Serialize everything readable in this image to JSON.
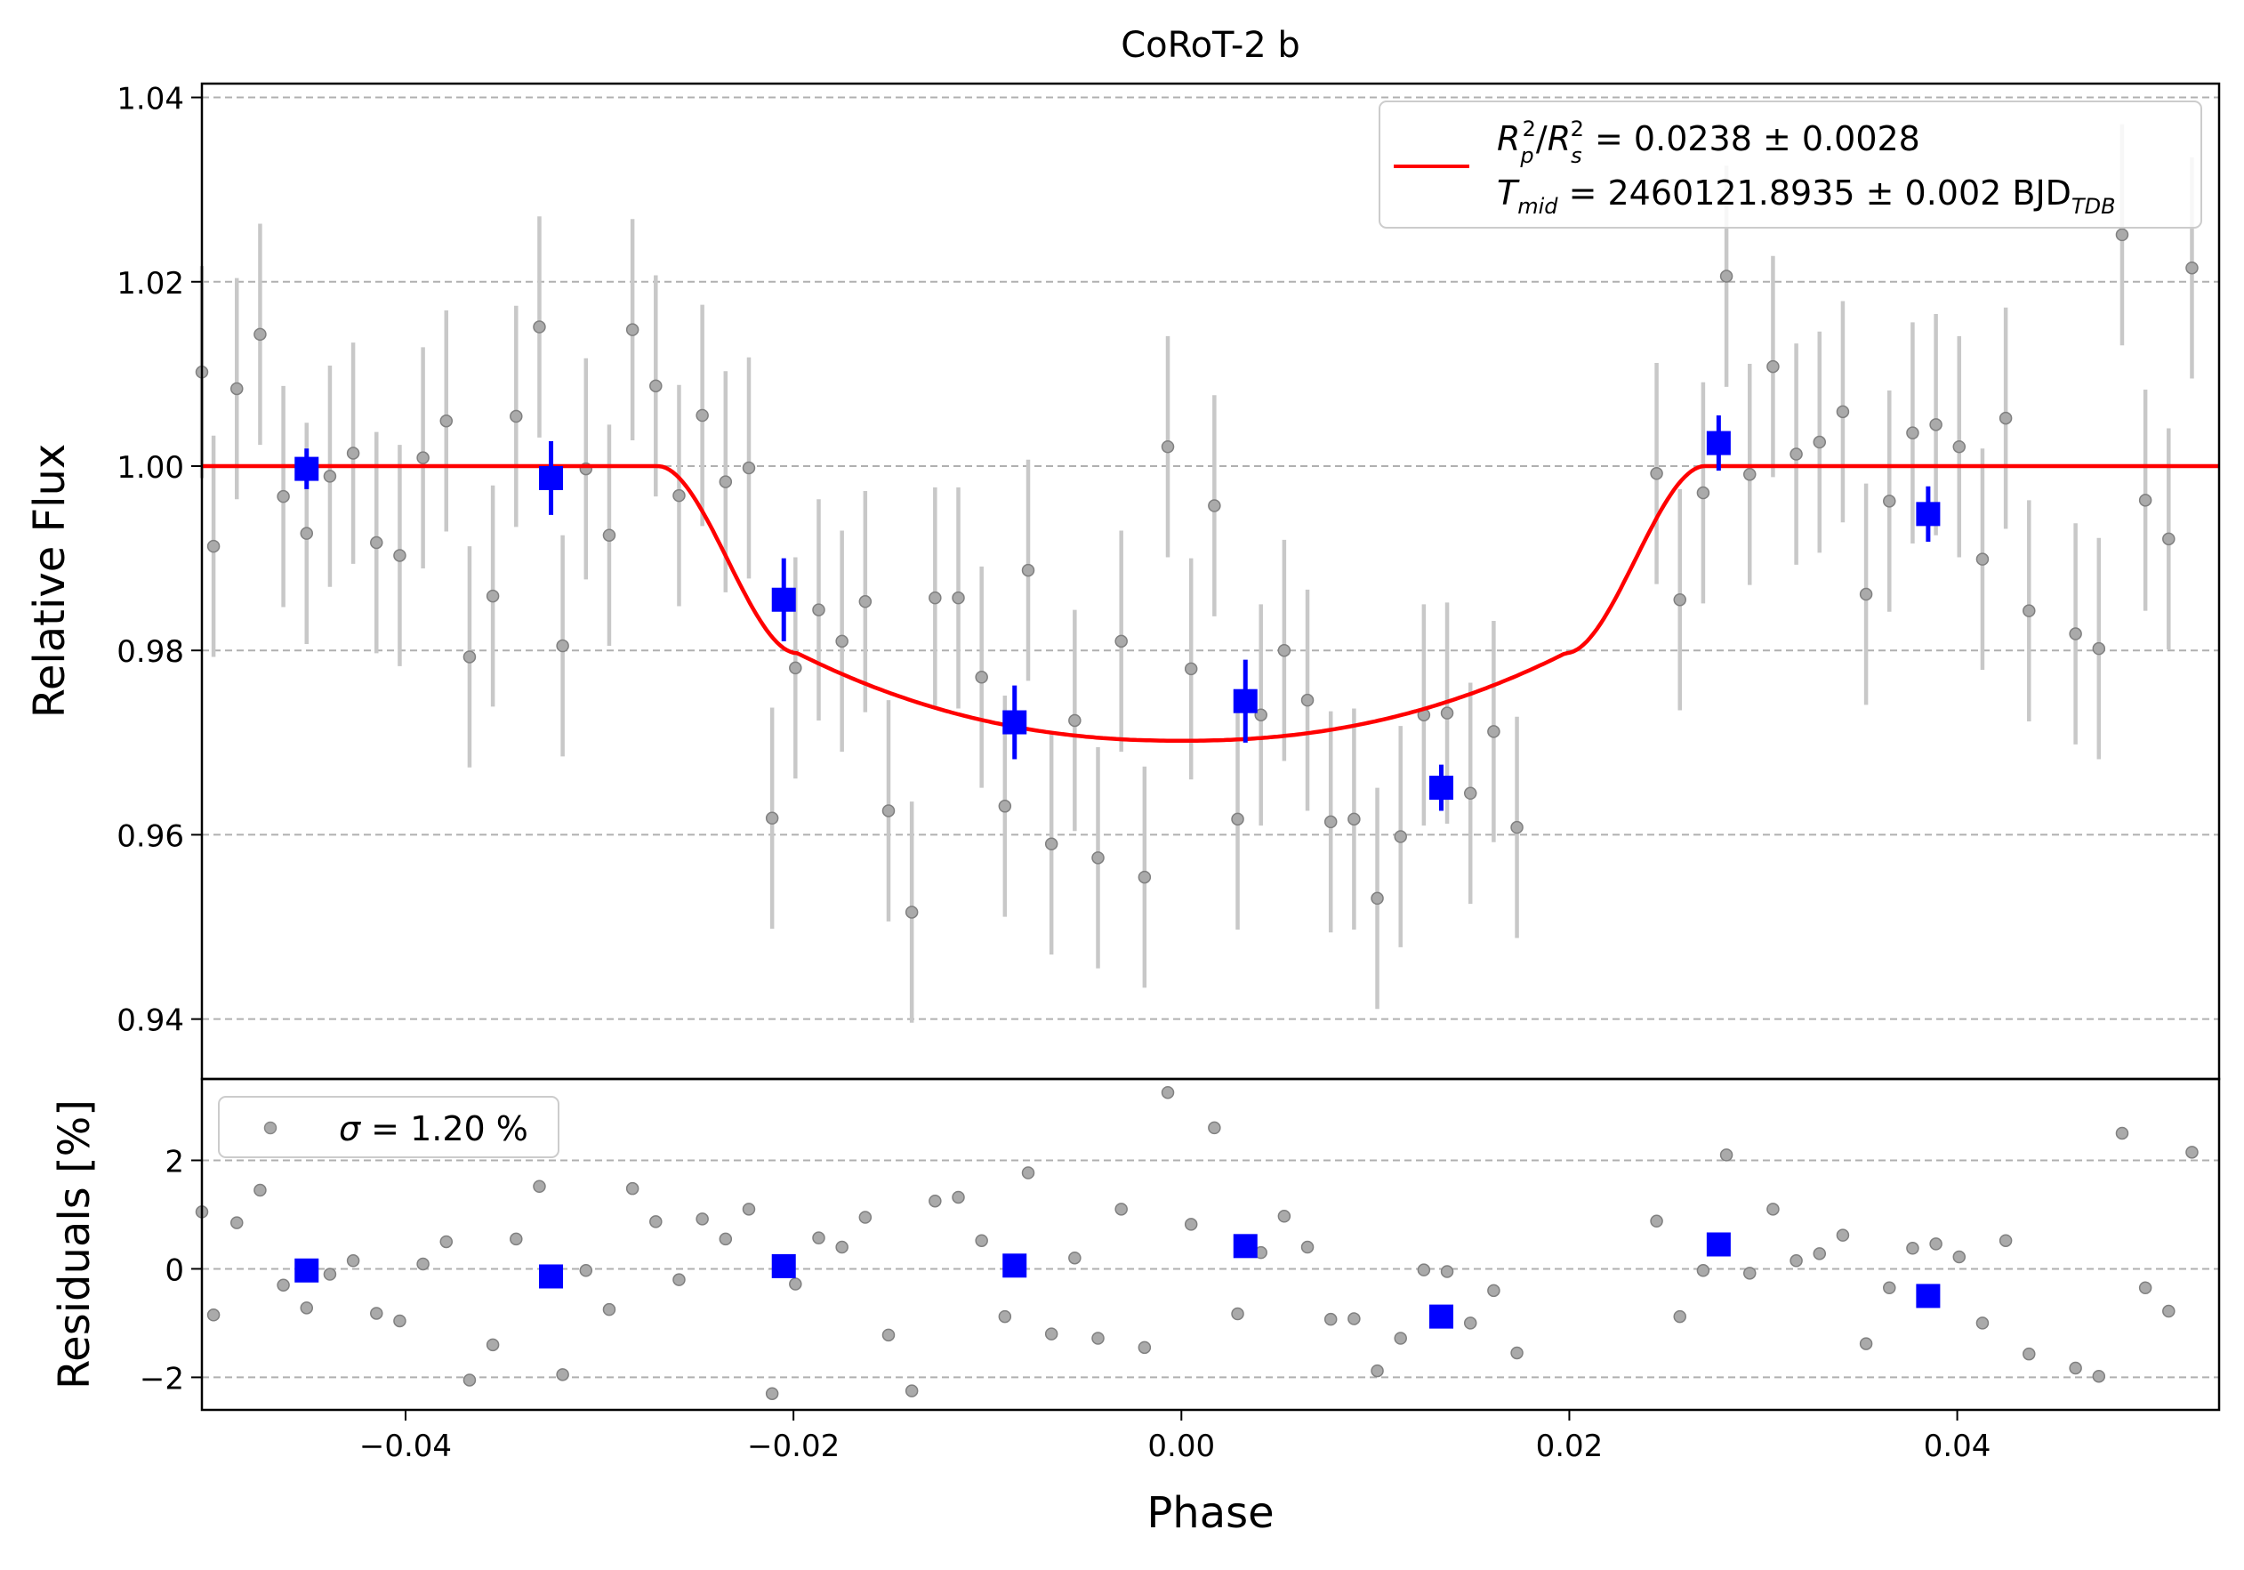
{
  "chart_data": {
    "type": "scatter",
    "title": "CoRoT-2 b",
    "xlabel": "Phase",
    "ylabel_top": "Relative Flux",
    "ylabel_bottom": "Residuals [%]",
    "xlim": [
      -0.0505,
      0.0535
    ],
    "ylim_top": [
      0.9335,
      1.0415
    ],
    "ylim_bottom": [
      -2.6,
      3.5
    ],
    "x_ticks": [
      {
        "v": -0.04,
        "label": "−0.04"
      },
      {
        "v": -0.02,
        "label": "−0.02"
      },
      {
        "v": 0.0,
        "label": "0.00"
      },
      {
        "v": 0.02,
        "label": "0.02"
      },
      {
        "v": 0.04,
        "label": "0.04"
      }
    ],
    "y_ticks_top": [
      {
        "v": 0.94,
        "label": "0.94"
      },
      {
        "v": 0.96,
        "label": "0.96"
      },
      {
        "v": 0.98,
        "label": "0.98"
      },
      {
        "v": 1.0,
        "label": "1.00"
      },
      {
        "v": 1.02,
        "label": "1.02"
      },
      {
        "v": 1.04,
        "label": "1.04"
      }
    ],
    "y_ticks_bottom": [
      {
        "v": -2,
        "label": "−2"
      },
      {
        "v": 0,
        "label": "0"
      },
      {
        "v": 2,
        "label": "2"
      }
    ],
    "grid": "horizontal dashed",
    "legend_top": {
      "placement": "top-right",
      "line1": "R",
      "line1_sub_p": "p",
      "line1_sup": "2",
      "line1_sub_s": "s",
      "line1_value": " = 0.0238 ± 0.0028",
      "line2_T": "T",
      "line2_sub": "mid",
      "line2_value": " = 2460121.8935 ± 0.002 BJD",
      "line2_unit_sub": "TDB"
    },
    "legend_bottom": {
      "placement": "top-left",
      "sigma": "σ",
      "text": " = 1.20 %"
    },
    "colors": {
      "model": "#ff0000",
      "binned": "#0000ff",
      "raw": "#808080",
      "errorbar": "#c8c8c8",
      "grid": "#b0b0b0"
    },
    "model": {
      "depth": 0.0238,
      "t_ingress_start": 0.027,
      "t_flat": 0.0198,
      "bottom": 0.9702,
      "contact2_flux": 0.9797
    },
    "raw_points": [
      {
        "x": -0.0505,
        "y": 1.0102,
        "e": 0.0115,
        "r": 1.05
      },
      {
        "x": -0.0499,
        "y": 0.9913,
        "e": 0.012,
        "r": -0.85
      },
      {
        "x": -0.0487,
        "y": 1.0084,
        "e": 0.012,
        "r": 0.85
      },
      {
        "x": -0.0475,
        "y": 1.0143,
        "e": 0.012,
        "r": 1.45
      },
      {
        "x": -0.0463,
        "y": 0.9967,
        "e": 0.012,
        "r": -0.3
      },
      {
        "x": -0.0451,
        "y": 0.9927,
        "e": 0.012,
        "r": -0.72
      },
      {
        "x": -0.0439,
        "y": 0.9989,
        "e": 0.012,
        "r": -0.1
      },
      {
        "x": -0.0427,
        "y": 1.0014,
        "e": 0.012,
        "r": 0.15
      },
      {
        "x": -0.0415,
        "y": 0.9917,
        "e": 0.012,
        "r": -0.82
      },
      {
        "x": -0.0403,
        "y": 0.9903,
        "e": 0.012,
        "r": -0.96
      },
      {
        "x": -0.0391,
        "y": 1.0009,
        "e": 0.012,
        "r": 0.09
      },
      {
        "x": -0.0379,
        "y": 1.0049,
        "e": 0.012,
        "r": 0.5
      },
      {
        "x": -0.0367,
        "y": 0.9793,
        "e": 0.012,
        "r": -2.05
      },
      {
        "x": -0.0355,
        "y": 0.9859,
        "e": 0.012,
        "r": -1.4
      },
      {
        "x": -0.0343,
        "y": 1.0054,
        "e": 0.012,
        "r": 0.55
      },
      {
        "x": -0.0331,
        "y": 1.0151,
        "e": 0.012,
        "r": 1.52
      },
      {
        "x": -0.0319,
        "y": 0.9805,
        "e": 0.012,
        "r": -1.95
      },
      {
        "x": -0.0307,
        "y": 0.9997,
        "e": 0.012,
        "r": -0.03
      },
      {
        "x": -0.0295,
        "y": 0.9925,
        "e": 0.012,
        "r": -0.75
      },
      {
        "x": -0.0283,
        "y": 1.0148,
        "e": 0.012,
        "r": 1.48
      },
      {
        "x": -0.0271,
        "y": 1.0087,
        "e": 0.012,
        "r": 0.87
      },
      {
        "x": -0.0259,
        "y": 0.9968,
        "e": 0.012,
        "r": -0.2
      },
      {
        "x": -0.0247,
        "y": 1.0055,
        "e": 0.012,
        "r": 0.92
      },
      {
        "x": -0.0235,
        "y": 0.9983,
        "e": 0.012,
        "r": 0.55
      },
      {
        "x": -0.0223,
        "y": 0.9998,
        "e": 0.012,
        "r": 1.1
      },
      {
        "x": -0.0211,
        "y": 0.9618,
        "e": 0.012,
        "r": -2.3
      },
      {
        "x": -0.0199,
        "y": 0.9781,
        "e": 0.012,
        "r": -0.28
      },
      {
        "x": -0.0187,
        "y": 0.9844,
        "e": 0.012,
        "r": 0.57
      },
      {
        "x": -0.0175,
        "y": 0.981,
        "e": 0.012,
        "r": 0.4
      },
      {
        "x": -0.0163,
        "y": 0.9853,
        "e": 0.012,
        "r": 0.95
      },
      {
        "x": -0.0151,
        "y": 0.9626,
        "e": 0.012,
        "r": -1.22
      },
      {
        "x": -0.0139,
        "y": 0.9516,
        "e": 0.012,
        "r": -2.25
      },
      {
        "x": -0.0127,
        "y": 0.9857,
        "e": 0.012,
        "r": 1.25
      },
      {
        "x": -0.0115,
        "y": 0.9857,
        "e": 0.012,
        "r": 1.32
      },
      {
        "x": -0.0103,
        "y": 0.9771,
        "e": 0.012,
        "r": 0.52
      },
      {
        "x": -0.0091,
        "y": 0.9631,
        "e": 0.012,
        "r": -0.88
      },
      {
        "x": -0.0079,
        "y": 0.9887,
        "e": 0.012,
        "r": 1.77
      },
      {
        "x": -0.0067,
        "y": 0.959,
        "e": 0.012,
        "r": -1.2
      },
      {
        "x": -0.0055,
        "y": 0.9724,
        "e": 0.012,
        "r": 0.2
      },
      {
        "x": -0.0043,
        "y": 0.9575,
        "e": 0.012,
        "r": -1.28
      },
      {
        "x": -0.0031,
        "y": 0.981,
        "e": 0.012,
        "r": 1.1
      },
      {
        "x": -0.0019,
        "y": 0.9554,
        "e": 0.012,
        "r": -1.45
      },
      {
        "x": -0.0007,
        "y": 1.0021,
        "e": 0.012,
        "r": 3.25
      },
      {
        "x": 0.0005,
        "y": 0.978,
        "e": 0.012,
        "r": 0.82
      },
      {
        "x": 0.0017,
        "y": 0.9957,
        "e": 0.012,
        "r": 2.6
      },
      {
        "x": 0.0029,
        "y": 0.9617,
        "e": 0.012,
        "r": -0.83
      },
      {
        "x": 0.0041,
        "y": 0.973,
        "e": 0.012,
        "r": 0.3
      },
      {
        "x": 0.0053,
        "y": 0.98,
        "e": 0.012,
        "r": 0.97
      },
      {
        "x": 0.0065,
        "y": 0.9746,
        "e": 0.012,
        "r": 0.4
      },
      {
        "x": 0.0077,
        "y": 0.9614,
        "e": 0.012,
        "r": -0.93
      },
      {
        "x": 0.0089,
        "y": 0.9617,
        "e": 0.012,
        "r": -0.92
      },
      {
        "x": 0.0101,
        "y": 0.9531,
        "e": 0.012,
        "r": -1.88
      },
      {
        "x": 0.0113,
        "y": 0.9598,
        "e": 0.012,
        "r": -1.28
      },
      {
        "x": 0.0125,
        "y": 0.973,
        "e": 0.012,
        "r": -0.02
      },
      {
        "x": 0.0137,
        "y": 0.9732,
        "e": 0.012,
        "r": -0.05
      },
      {
        "x": 0.0149,
        "y": 0.9645,
        "e": 0.012,
        "r": -1.0
      },
      {
        "x": 0.0161,
        "y": 0.9712,
        "e": 0.012,
        "r": -0.4
      },
      {
        "x": 0.0173,
        "y": 0.9608,
        "e": 0.012,
        "r": -1.55
      },
      {
        "x": 0.0245,
        "y": 0.9992,
        "e": 0.012,
        "r": 0.88
      },
      {
        "x": 0.0257,
        "y": 0.9855,
        "e": 0.012,
        "r": -0.88
      },
      {
        "x": 0.0269,
        "y": 0.9971,
        "e": 0.012,
        "r": -0.03
      },
      {
        "x": 0.0281,
        "y": 1.0206,
        "e": 0.012,
        "r": 2.1
      },
      {
        "x": 0.0293,
        "y": 0.9991,
        "e": 0.012,
        "r": -0.08
      },
      {
        "x": 0.0305,
        "y": 1.0108,
        "e": 0.012,
        "r": 1.1
      },
      {
        "x": 0.0317,
        "y": 1.0013,
        "e": 0.012,
        "r": 0.15
      },
      {
        "x": 0.0329,
        "y": 1.0026,
        "e": 0.012,
        "r": 0.28
      },
      {
        "x": 0.0341,
        "y": 1.0059,
        "e": 0.012,
        "r": 0.62
      },
      {
        "x": 0.0353,
        "y": 0.9861,
        "e": 0.012,
        "r": -1.38
      },
      {
        "x": 0.0365,
        "y": 0.9962,
        "e": 0.012,
        "r": -0.35
      },
      {
        "x": 0.0377,
        "y": 1.0036,
        "e": 0.012,
        "r": 0.38
      },
      {
        "x": 0.0389,
        "y": 1.0045,
        "e": 0.012,
        "r": 0.46
      },
      {
        "x": 0.0401,
        "y": 1.0021,
        "e": 0.012,
        "r": 0.22
      },
      {
        "x": 0.0413,
        "y": 0.9899,
        "e": 0.012,
        "r": -1.0
      },
      {
        "x": 0.0425,
        "y": 1.0052,
        "e": 0.012,
        "r": 0.52
      },
      {
        "x": 0.0437,
        "y": 0.9843,
        "e": 0.012,
        "r": -1.57
      },
      {
        "x": 0.0461,
        "y": 0.9818,
        "e": 0.012,
        "r": -1.83
      },
      {
        "x": 0.0473,
        "y": 0.9802,
        "e": 0.012,
        "r": -1.98
      },
      {
        "x": 0.0485,
        "y": 1.0251,
        "e": 0.012,
        "r": 2.5
      },
      {
        "x": 0.0497,
        "y": 0.9963,
        "e": 0.012,
        "r": -0.35
      },
      {
        "x": 0.0509,
        "y": 0.9921,
        "e": 0.012,
        "r": -0.78
      },
      {
        "x": 0.0521,
        "y": 1.0215,
        "e": 0.012,
        "r": 2.15
      }
    ],
    "binned_points": [
      {
        "x": -0.0451,
        "y": 0.9997,
        "e": 0.0022,
        "r": -0.03
      },
      {
        "x": -0.0325,
        "y": 0.9987,
        "e": 0.004,
        "r": -0.14
      },
      {
        "x": -0.0205,
        "y": 0.9855,
        "e": 0.0045,
        "r": 0.05
      },
      {
        "x": -0.0086,
        "y": 0.9722,
        "e": 0.004,
        "r": 0.06
      },
      {
        "x": 0.0033,
        "y": 0.9745,
        "e": 0.0045,
        "r": 0.42
      },
      {
        "x": 0.0134,
        "y": 0.9651,
        "e": 0.0025,
        "r": -0.88
      },
      {
        "x": 0.0277,
        "y": 1.0025,
        "e": 0.003,
        "r": 0.45
      },
      {
        "x": 0.0385,
        "y": 0.9948,
        "e": 0.003,
        "r": -0.5
      }
    ]
  }
}
